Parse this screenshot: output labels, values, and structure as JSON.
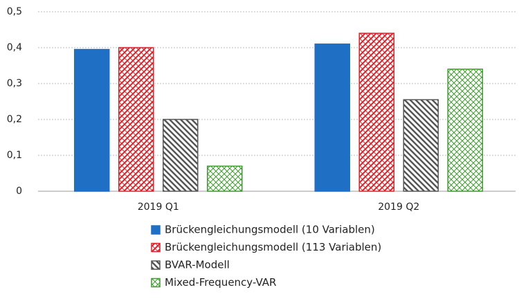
{
  "chart_data": {
    "type": "bar",
    "categories": [
      "2019 Q1",
      "2019 Q2"
    ],
    "series": [
      {
        "name": "Brückengleichungsmodell (10 Variablen)",
        "color": "#1f6fc5",
        "pattern": "solid",
        "values": [
          0.395,
          0.41
        ]
      },
      {
        "name": "Brückengleichungsmodell (113 Variablen)",
        "color": "#d9232a",
        "pattern": "crosshatch",
        "values": [
          0.4,
          0.44
        ]
      },
      {
        "name": "BVAR-Modell",
        "color": "#555555",
        "pattern": "backslash",
        "values": [
          0.2,
          0.255
        ]
      },
      {
        "name": "Mixed-Frequency-VAR",
        "color": "#3f9a2f",
        "pattern": "grid",
        "values": [
          0.07,
          0.34
        ]
      }
    ],
    "ylim": [
      0,
      0.5
    ],
    "yticks": [
      0,
      {
        "value": 0.1,
        "label": "0,1"
      },
      {
        "value": 0.2,
        "label": "0,2"
      },
      {
        "value": 0.3,
        "label": "0,3"
      },
      {
        "value": 0.4,
        "label": "0,4"
      },
      {
        "value": 0.5,
        "label": "0,5"
      }
    ],
    "grid": true
  }
}
